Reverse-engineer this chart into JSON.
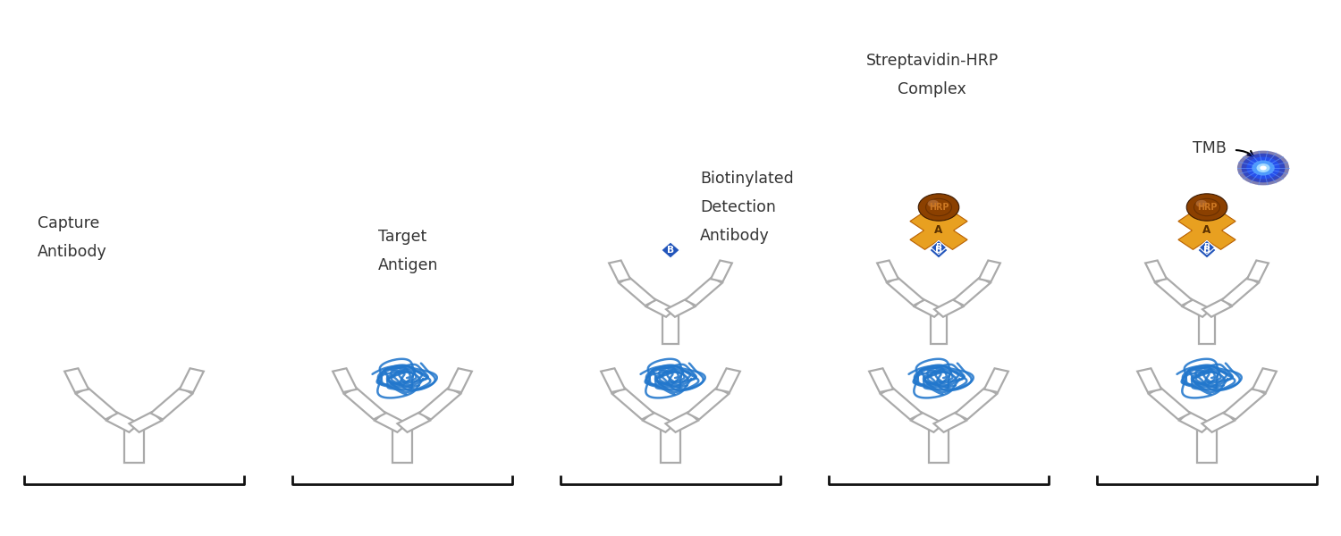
{
  "background_color": "#ffffff",
  "labels": [
    [
      "Capture",
      "Antibody"
    ],
    [
      "Target",
      "Antigen"
    ],
    [
      "Biotinylated",
      "Detection",
      "Antibody"
    ],
    [
      "Streptavidin-HRP",
      "Complex"
    ],
    [
      "TMB"
    ]
  ],
  "antibody_color": "#aaaaaa",
  "strep_color": "#e8a020",
  "hrp_fill": "#8B4000",
  "hrp_text": "#cc7722",
  "biotin_fill": "#2255bb",
  "bracket_color": "#111111",
  "text_color": "#333333",
  "antigen_color": "#2277cc",
  "label_fontsize": 12.5,
  "panels": [
    1.0,
    3.0,
    5.0,
    7.0,
    9.0
  ]
}
